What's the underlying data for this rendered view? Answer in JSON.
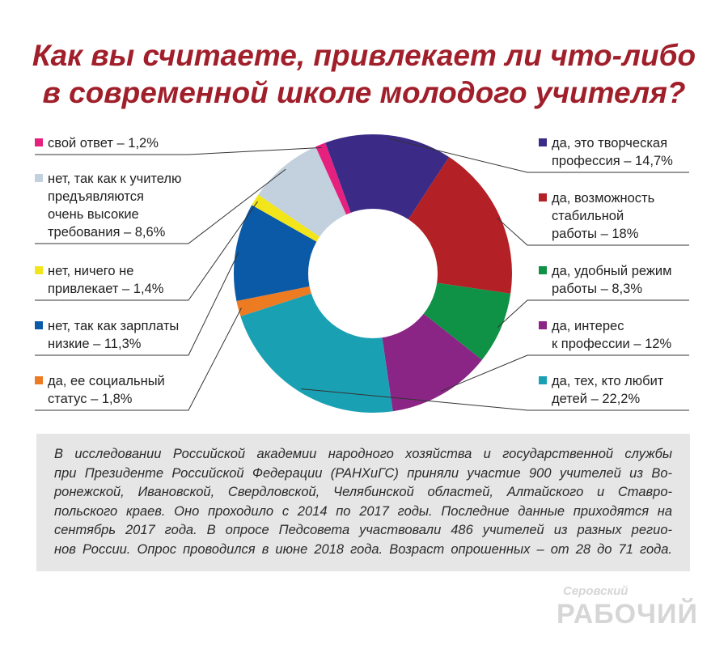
{
  "chart_data": {
    "type": "pie",
    "title": "Как вы считаете, привлекает ли что-либо в современной школе молодого учителя?",
    "title_lines": [
      "Как вы считаете, привлекает ли что-либо",
      "в современной школе молодого учителя?"
    ],
    "slices": [
      {
        "label": "да, это творческая\nпрофессия – 14,7%",
        "value": 14.7,
        "color": "#3b2b86",
        "side": "right"
      },
      {
        "label": "да, возможность\nстабильной\nработы – 18%",
        "value": 18.0,
        "color": "#b32026",
        "side": "right"
      },
      {
        "label": "да, удобный режим\nработы – 8,3%",
        "value": 8.3,
        "color": "#0f9245",
        "side": "right"
      },
      {
        "label": "да, интерес\nк профессии – 12%",
        "value": 12.0,
        "color": "#8a2586",
        "side": "right"
      },
      {
        "label": "да, тех, кто любит\nдетей – 22,2%",
        "value": 22.2,
        "color": "#1aa0b3",
        "side": "right"
      },
      {
        "label": "да, ее социальный\nстатус – 1,8%",
        "value": 1.8,
        "color": "#ec7b22",
        "side": "left"
      },
      {
        "label": "нет, так как зарплаты\nнизкие – 11,3%",
        "value": 11.3,
        "color": "#0a5aa8",
        "side": "left"
      },
      {
        "label": "нет, ничего не\nпривлекает – 1,4%",
        "value": 1.4,
        "color": "#f2e61b",
        "side": "left"
      },
      {
        "label": "нет, так как к учителю\nпредъявляются\nочень высокие\nтребования – 8,6%",
        "value": 8.6,
        "color": "#c2d1dd",
        "side": "left"
      },
      {
        "label": "свой ответ – 1,2%",
        "value": 1.2,
        "color": "#e5207e",
        "side": "left"
      }
    ]
  },
  "note": {
    "lines": [
      "В исследовании Российской академии народного хозяйства и государственной службы",
      "при Президенте Российской Федерации (РАНХиГС) приняли участие 900 учителей из Во-",
      "ронежской, Ивановской, Свердловской, Челябинской областей, Алтайского и Ставро-",
      "польского краев. Оно проходило с 2014 по 2017 годы. Последние данные приходятся на",
      "сентябрь 2017 года. В опросе Педсовета участвовали 486 учителей из разных регио-",
      "нов России. Опрос проводился в июне 2018 года. Возраст опрошенных – от 28 до 71 года."
    ]
  },
  "brand": {
    "line1": "Серовский",
    "line2": "РАБОЧИЙ"
  }
}
